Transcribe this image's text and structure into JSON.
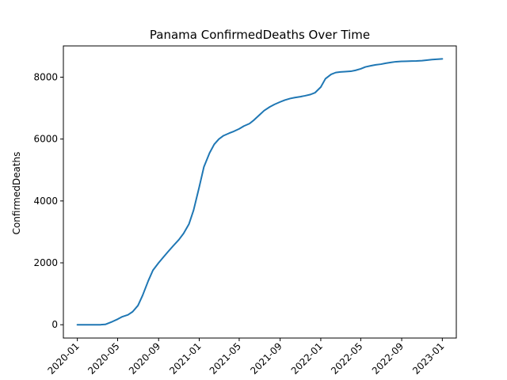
{
  "chart_data": {
    "type": "line",
    "title": "Panama  ConfirmedDeaths Over Time",
    "xlabel": "",
    "ylabel": "ConfirmedDeaths",
    "x_ticks": [
      "2020-01",
      "2020-05",
      "2020-09",
      "2021-01",
      "2021-05",
      "2021-09",
      "2022-01",
      "2022-05",
      "2022-09",
      "2023-01"
    ],
    "y_ticks": [
      0,
      2000,
      4000,
      6000,
      8000
    ],
    "xlim": [
      "2019-11-20",
      "2023-02-12"
    ],
    "ylim": [
      -430,
      9010
    ],
    "grid": false,
    "series": [
      {
        "name": "",
        "color": "#1f77b4",
        "points": [
          [
            "2020-01-01",
            0
          ],
          [
            "2020-03-10",
            0
          ],
          [
            "2020-03-25",
            10
          ],
          [
            "2020-04-15",
            100
          ],
          [
            "2020-05-01",
            180
          ],
          [
            "2020-05-15",
            260
          ],
          [
            "2020-06-01",
            320
          ],
          [
            "2020-06-15",
            420
          ],
          [
            "2020-07-01",
            620
          ],
          [
            "2020-07-15",
            950
          ],
          [
            "2020-08-01",
            1420
          ],
          [
            "2020-08-15",
            1760
          ],
          [
            "2020-09-01",
            2000
          ],
          [
            "2020-09-15",
            2180
          ],
          [
            "2020-10-01",
            2380
          ],
          [
            "2020-10-15",
            2550
          ],
          [
            "2020-11-01",
            2750
          ],
          [
            "2020-11-15",
            2950
          ],
          [
            "2020-12-01",
            3250
          ],
          [
            "2020-12-15",
            3700
          ],
          [
            "2021-01-01",
            4450
          ],
          [
            "2021-01-15",
            5100
          ],
          [
            "2021-02-01",
            5550
          ],
          [
            "2021-02-15",
            5830
          ],
          [
            "2021-03-01",
            6000
          ],
          [
            "2021-03-15",
            6110
          ],
          [
            "2021-04-01",
            6190
          ],
          [
            "2021-04-15",
            6250
          ],
          [
            "2021-05-01",
            6330
          ],
          [
            "2021-05-15",
            6420
          ],
          [
            "2021-06-01",
            6500
          ],
          [
            "2021-06-15",
            6620
          ],
          [
            "2021-07-01",
            6780
          ],
          [
            "2021-07-15",
            6920
          ],
          [
            "2021-08-01",
            7040
          ],
          [
            "2021-08-15",
            7120
          ],
          [
            "2021-09-01",
            7200
          ],
          [
            "2021-09-15",
            7260
          ],
          [
            "2021-10-01",
            7310
          ],
          [
            "2021-10-15",
            7340
          ],
          [
            "2021-11-01",
            7370
          ],
          [
            "2021-11-15",
            7400
          ],
          [
            "2021-12-01",
            7440
          ],
          [
            "2021-12-15",
            7500
          ],
          [
            "2022-01-01",
            7680
          ],
          [
            "2022-01-15",
            7950
          ],
          [
            "2022-02-01",
            8090
          ],
          [
            "2022-02-15",
            8150
          ],
          [
            "2022-03-01",
            8170
          ],
          [
            "2022-03-15",
            8180
          ],
          [
            "2022-04-01",
            8190
          ],
          [
            "2022-04-15",
            8220
          ],
          [
            "2022-05-01",
            8270
          ],
          [
            "2022-05-15",
            8330
          ],
          [
            "2022-06-01",
            8370
          ],
          [
            "2022-06-15",
            8400
          ],
          [
            "2022-07-01",
            8420
          ],
          [
            "2022-07-15",
            8450
          ],
          [
            "2022-08-01",
            8480
          ],
          [
            "2022-08-15",
            8500
          ],
          [
            "2022-09-01",
            8510
          ],
          [
            "2022-09-15",
            8515
          ],
          [
            "2022-10-01",
            8520
          ],
          [
            "2022-10-15",
            8525
          ],
          [
            "2022-11-01",
            8535
          ],
          [
            "2022-11-15",
            8550
          ],
          [
            "2022-12-01",
            8570
          ],
          [
            "2023-01-01",
            8590
          ]
        ]
      }
    ]
  }
}
